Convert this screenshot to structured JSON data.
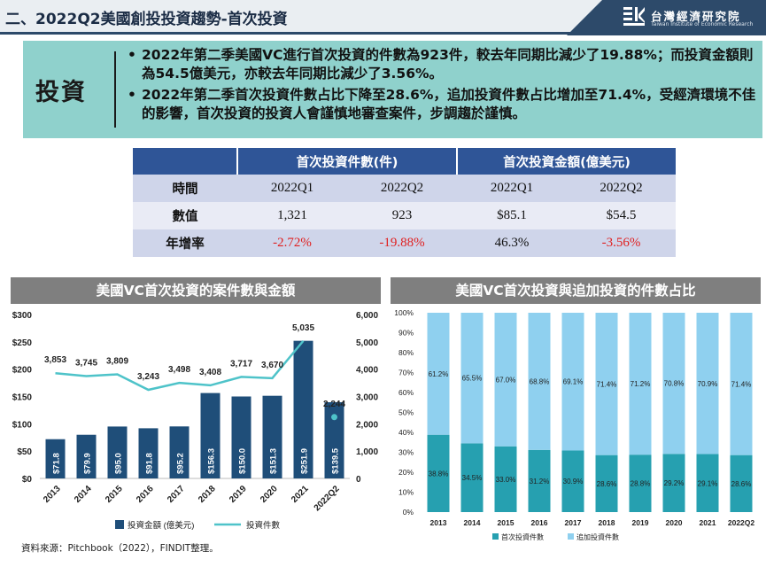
{
  "header": {
    "title": "二、2022Q2美國創投投資趨勢-首次投資",
    "logo_name": "台灣經濟研究院",
    "logo_en": "Taiwan Institute of Economic Research"
  },
  "summary": {
    "label": "投資",
    "bullets": [
      "2022年第二季美國VC進行首次投資的件數為923件，較去年同期比減少了19.88%；而投資金額則為54.5億美元，亦較去年同期比減少了3.56%。",
      "2022年第二季首次投資件數占比下降至28.6%，追加投資件數占比增加至71.4%，受經濟環境不佳的影響，首次投資的投資人會謹慎地審查案件，步調趨於謹慎。"
    ]
  },
  "table": {
    "group_headers": [
      "首次投資件數(件)",
      "首次投資金額(億美元)"
    ],
    "rows": [
      {
        "label": "時間",
        "cells": [
          "2022Q1",
          "2022Q2",
          "2022Q1",
          "2022Q2"
        ],
        "neg": [
          false,
          false,
          false,
          false
        ]
      },
      {
        "label": "數值",
        "cells": [
          "1,321",
          "923",
          "$85.1",
          "$54.5"
        ],
        "neg": [
          false,
          false,
          false,
          false
        ]
      },
      {
        "label": "年增率",
        "cells": [
          "-2.72%",
          "-19.88%",
          "46.3%",
          "-3.56%"
        ],
        "neg": [
          true,
          true,
          false,
          true
        ]
      }
    ]
  },
  "chart1": {
    "title": "美國VC首次投資的案件數與金額",
    "chart_data": {
      "type": "bar",
      "categories": [
        "2013",
        "2014",
        "2015",
        "2016",
        "2017",
        "2018",
        "2019",
        "2020",
        "2021",
        "2022Q2"
      ],
      "series": [
        {
          "name": "投資金額 (億美元)",
          "type": "bar",
          "axis": "left",
          "values": [
            71.8,
            79.9,
            95.0,
            91.8,
            95.2,
            156.3,
            150.0,
            151.3,
            251.9,
            139.5
          ],
          "labels": [
            "$71.8",
            "$79.9",
            "$95.0",
            "$91.8",
            "$95.2",
            "$156.3",
            "$150.0",
            "$151.3",
            "$251.9",
            "$139.5"
          ]
        },
        {
          "name": "投資件數",
          "type": "line",
          "axis": "right",
          "values": [
            3853,
            3745,
            3809,
            3243,
            3498,
            3408,
            3717,
            3670,
            5035,
            2244
          ],
          "labels": [
            "3,853",
            "3,745",
            "3,809",
            "3,243",
            "3,498",
            "3,408",
            "3,717",
            "3,670",
            "5,035",
            "2,244"
          ]
        }
      ],
      "ylim_left": [
        0,
        300
      ],
      "yticks_left": [
        "$0",
        "$50",
        "$100",
        "$150",
        "$200",
        "$250",
        "$300"
      ],
      "ylim_right": [
        0,
        6000
      ],
      "yticks_right": [
        "0",
        "1,000",
        "2,000",
        "3,000",
        "4,000",
        "5,000",
        "6,000"
      ],
      "legend": "bottom",
      "colors": {
        "bar": "#1f4e79",
        "line": "#4ec3c9"
      }
    }
  },
  "chart2": {
    "title": "美國VC首次投資與追加投資的件數占比",
    "chart_data": {
      "type": "bar",
      "stacked": true,
      "categories": [
        "2013",
        "2014",
        "2015",
        "2016",
        "2017",
        "2018",
        "2019",
        "2020",
        "2021",
        "2022Q2"
      ],
      "series": [
        {
          "name": "首次投資件數",
          "values": [
            38.8,
            34.5,
            33.0,
            31.2,
            30.9,
            28.6,
            28.8,
            29.2,
            29.1,
            28.6
          ],
          "labels": [
            "38.8%",
            "34.5%",
            "33.0%",
            "31.2%",
            "30.9%",
            "28.6%",
            "28.8%",
            "29.2%",
            "29.1%",
            "28.6%"
          ]
        },
        {
          "name": "追加投資件數",
          "values": [
            61.2,
            65.5,
            67.0,
            68.8,
            69.1,
            71.4,
            71.2,
            70.8,
            70.9,
            71.4
          ],
          "labels": [
            "61.2%",
            "65.5%",
            "67.0%",
            "68.8%",
            "69.1%",
            "71.4%",
            "71.2%",
            "70.8%",
            "70.9%",
            "71.4%"
          ]
        }
      ],
      "ylim": [
        0,
        100
      ],
      "yticks": [
        "0%",
        "10%",
        "20%",
        "30%",
        "40%",
        "50%",
        "60%",
        "70%",
        "80%",
        "90%",
        "100%"
      ],
      "legend": "bottom",
      "colors": {
        "first": "#26a0b0",
        "follow": "#8fd0ef"
      }
    }
  },
  "source": "資料來源：Pitchbook（2022），FINDIT整理。"
}
